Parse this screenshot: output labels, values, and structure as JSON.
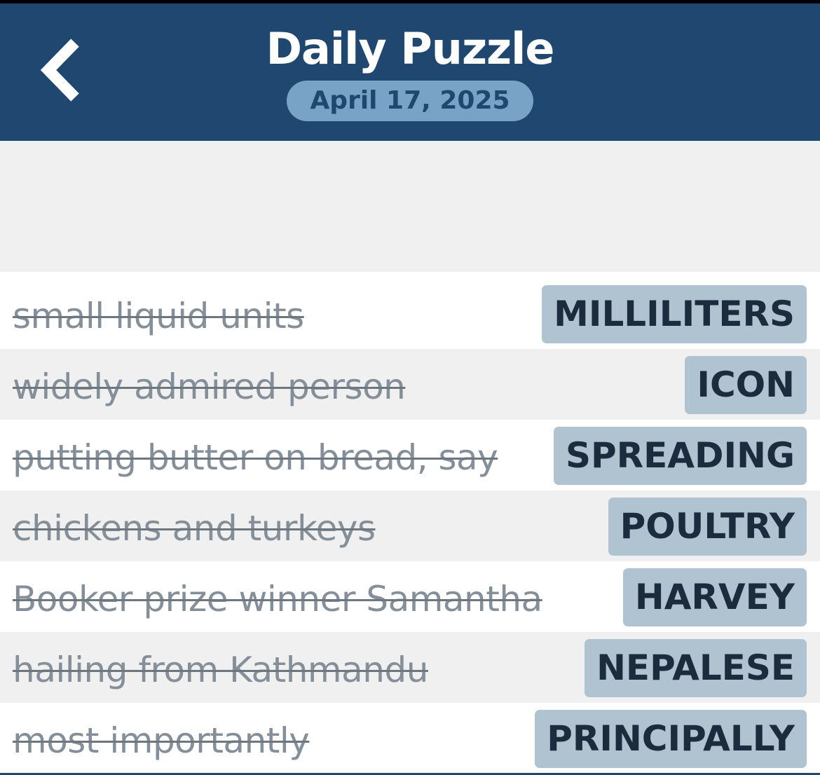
{
  "header": {
    "title": "Daily Puzzle",
    "date": "April 17, 2025",
    "back_icon": "chevron-left-icon"
  },
  "colors": {
    "header_bg": "#1f4770",
    "date_pill": "#79a3c6",
    "answer_pill": "#b0c3d1"
  },
  "clues": [
    {
      "clue": "small liquid units",
      "answer": "MILLILITERS",
      "solved": true
    },
    {
      "clue": "widely admired person",
      "answer": "ICON",
      "solved": true
    },
    {
      "clue": "putting butter on bread, say",
      "answer": "SPREADING",
      "solved": true
    },
    {
      "clue": "chickens and turkeys",
      "answer": "POULTRY",
      "solved": true
    },
    {
      "clue": "Booker prize winner Samantha",
      "answer": "HARVEY",
      "solved": true
    },
    {
      "clue": "hailing from Kathmandu",
      "answer": "NEPALESE",
      "solved": true
    },
    {
      "clue": "most importantly",
      "answer": "PRINCIPALLY",
      "solved": true
    }
  ]
}
